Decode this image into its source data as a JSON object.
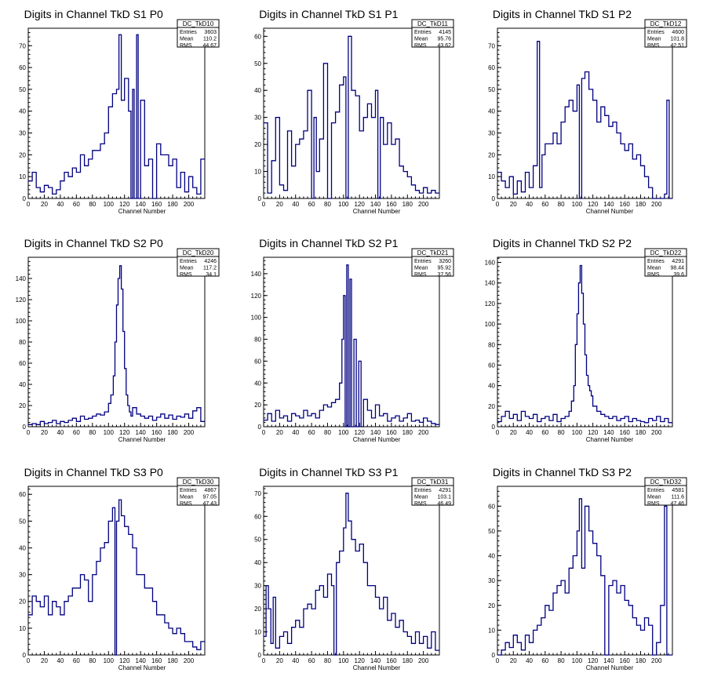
{
  "chart_data": [
    {
      "type": "histogram",
      "title": "Digits in Channel TkD S1 P0",
      "xlabel": "Channel Number",
      "ylabel": "",
      "xlim": [
        0,
        220
      ],
      "ylim": [
        0,
        78
      ],
      "x_ticks": [
        0,
        20,
        40,
        60,
        80,
        100,
        120,
        140,
        160,
        180,
        200
      ],
      "y_ticks": [
        0,
        10,
        20,
        30,
        40,
        50,
        60,
        70
      ],
      "stats": {
        "name": "DC_TkD10",
        "entries": "3603",
        "mean": "110.2",
        "rms": "44.67"
      },
      "x": [
        0,
        5,
        10,
        15,
        20,
        25,
        30,
        35,
        40,
        45,
        50,
        55,
        60,
        65,
        70,
        75,
        80,
        85,
        90,
        95,
        100,
        105,
        110,
        113,
        116,
        120,
        125,
        128,
        130,
        132,
        135,
        137,
        140,
        145,
        150,
        155,
        160,
        165,
        170,
        175,
        180,
        185,
        190,
        195,
        200,
        205,
        210,
        215
      ],
      "values": [
        8,
        12,
        5,
        3,
        6,
        5,
        2,
        4,
        8,
        12,
        10,
        14,
        12,
        20,
        15,
        18,
        22,
        22,
        25,
        30,
        42,
        48,
        50,
        75,
        45,
        55,
        40,
        0,
        50,
        0,
        75,
        0,
        45,
        15,
        18,
        0,
        25,
        20,
        20,
        15,
        18,
        5,
        12,
        3,
        10,
        5,
        2,
        18
      ],
      "color": "#000080"
    },
    {
      "type": "histogram",
      "title": "Digits in Channel TkD S1 P1",
      "xlabel": "Channel Number",
      "ylabel": "",
      "xlim": [
        0,
        220
      ],
      "ylim": [
        0,
        63
      ],
      "x_ticks": [
        0,
        20,
        40,
        60,
        80,
        100,
        120,
        140,
        160,
        180,
        200
      ],
      "y_ticks": [
        0,
        10,
        20,
        30,
        40,
        50,
        60
      ],
      "stats": {
        "name": "DC_TkD11",
        "entries": "4145",
        "mean": "95.76",
        "rms": "43.62"
      },
      "x": [
        0,
        5,
        10,
        15,
        20,
        25,
        30,
        35,
        40,
        45,
        50,
        55,
        60,
        63,
        66,
        70,
        75,
        80,
        85,
        90,
        95,
        100,
        103,
        106,
        110,
        115,
        120,
        125,
        130,
        135,
        140,
        143,
        146,
        150,
        155,
        160,
        165,
        170,
        175,
        180,
        185,
        190,
        195,
        200,
        205,
        210,
        215
      ],
      "values": [
        28,
        2,
        14,
        30,
        5,
        3,
        25,
        12,
        20,
        22,
        25,
        40,
        0,
        30,
        10,
        22,
        50,
        0,
        28,
        32,
        42,
        45,
        0,
        60,
        40,
        38,
        25,
        30,
        35,
        30,
        40,
        0,
        30,
        20,
        28,
        20,
        22,
        12,
        10,
        8,
        5,
        3,
        2,
        4,
        2,
        3,
        2
      ],
      "color": "#000080"
    },
    {
      "type": "histogram",
      "title": "Digits in Channel TkD S1 P2",
      "xlabel": "Channel Number",
      "ylabel": "",
      "xlim": [
        0,
        220
      ],
      "ylim": [
        0,
        78
      ],
      "x_ticks": [
        0,
        20,
        40,
        60,
        80,
        100,
        120,
        140,
        160,
        180,
        200
      ],
      "y_ticks": [
        0,
        10,
        20,
        30,
        40,
        50,
        60,
        70
      ],
      "stats": {
        "name": "DC_TkD12",
        "entries": "4600",
        "mean": "101.8",
        "rms": "42.51"
      },
      "x": [
        0,
        5,
        10,
        15,
        20,
        25,
        30,
        35,
        40,
        45,
        50,
        53,
        56,
        60,
        65,
        70,
        75,
        80,
        85,
        90,
        95,
        100,
        103,
        106,
        110,
        115,
        120,
        125,
        130,
        135,
        140,
        145,
        150,
        155,
        160,
        165,
        170,
        175,
        180,
        185,
        190,
        195,
        200,
        205,
        210,
        213,
        216
      ],
      "values": [
        12,
        8,
        5,
        10,
        2,
        8,
        3,
        12,
        5,
        15,
        72,
        5,
        20,
        25,
        25,
        30,
        25,
        35,
        42,
        45,
        40,
        52,
        0,
        55,
        58,
        50,
        45,
        35,
        42,
        38,
        33,
        35,
        30,
        25,
        22,
        25,
        18,
        20,
        15,
        10,
        5,
        0,
        0,
        0,
        2,
        45,
        0
      ],
      "color": "#000080"
    },
    {
      "type": "histogram",
      "title": "Digits in Channel TkD S2 P0",
      "xlabel": "Channel Number",
      "ylabel": "",
      "xlim": [
        0,
        220
      ],
      "ylim": [
        0,
        160
      ],
      "x_ticks": [
        0,
        20,
        40,
        60,
        80,
        100,
        120,
        140,
        160,
        180,
        200
      ],
      "y_ticks": [
        0,
        20,
        40,
        60,
        80,
        100,
        120,
        140
      ],
      "stats": {
        "name": "DC_TkD20",
        "entries": "4246",
        "mean": "117.2",
        "rms": "34.1"
      },
      "x": [
        0,
        5,
        10,
        15,
        20,
        25,
        30,
        35,
        40,
        45,
        50,
        55,
        60,
        65,
        70,
        75,
        80,
        85,
        90,
        95,
        100,
        103,
        106,
        108,
        110,
        112,
        114,
        116,
        118,
        120,
        122,
        124,
        126,
        128,
        130,
        135,
        140,
        145,
        150,
        155,
        160,
        165,
        170,
        175,
        180,
        185,
        190,
        195,
        200,
        205,
        210,
        215
      ],
      "values": [
        2,
        3,
        2,
        5,
        3,
        4,
        6,
        3,
        5,
        4,
        6,
        8,
        5,
        10,
        7,
        8,
        10,
        12,
        11,
        14,
        22,
        30,
        48,
        80,
        115,
        140,
        152,
        130,
        90,
        55,
        30,
        20,
        14,
        10,
        18,
        12,
        10,
        8,
        10,
        6,
        9,
        12,
        8,
        11,
        7,
        10,
        9,
        12,
        8,
        15,
        18,
        5
      ],
      "color": "#000080"
    },
    {
      "type": "histogram",
      "title": "Digits in Channel TkD S2 P1",
      "xlabel": "Channel Number",
      "ylabel": "",
      "xlim": [
        0,
        220
      ],
      "ylim": [
        0,
        155
      ],
      "x_ticks": [
        0,
        20,
        40,
        60,
        80,
        100,
        120,
        140,
        160,
        180,
        200
      ],
      "y_ticks": [
        0,
        20,
        40,
        60,
        80,
        100,
        120,
        140
      ],
      "stats": {
        "name": "DC_TkD21",
        "entries": "3260",
        "mean": "95.92",
        "rms": "37.56"
      },
      "x": [
        0,
        5,
        10,
        15,
        20,
        25,
        30,
        35,
        40,
        45,
        50,
        55,
        60,
        65,
        70,
        75,
        80,
        85,
        90,
        95,
        98,
        100,
        102,
        104,
        106,
        108,
        110,
        113,
        116,
        119,
        122,
        125,
        130,
        135,
        140,
        145,
        150,
        155,
        160,
        165,
        170,
        175,
        180,
        185,
        190,
        195,
        200,
        205,
        210,
        215
      ],
      "values": [
        6,
        12,
        5,
        15,
        8,
        10,
        5,
        12,
        10,
        8,
        15,
        10,
        12,
        8,
        15,
        20,
        18,
        22,
        25,
        40,
        80,
        120,
        0,
        148,
        0,
        135,
        0,
        80,
        0,
        60,
        0,
        25,
        15,
        8,
        20,
        10,
        12,
        5,
        8,
        10,
        5,
        8,
        12,
        5,
        6,
        4,
        8,
        5,
        3,
        2
      ],
      "color": "#000080"
    },
    {
      "type": "histogram",
      "title": "Digits in Channel TkD S2 P2",
      "xlabel": "Channel Number",
      "ylabel": "",
      "xlim": [
        0,
        220
      ],
      "ylim": [
        0,
        165
      ],
      "x_ticks": [
        0,
        20,
        40,
        60,
        80,
        100,
        120,
        140,
        160,
        180,
        200
      ],
      "y_ticks": [
        0,
        20,
        40,
        60,
        80,
        100,
        120,
        140,
        160
      ],
      "stats": {
        "name": "DC_TkD22",
        "entries": "4291",
        "mean": "98.44",
        "rms": "39.6"
      },
      "x": [
        0,
        5,
        10,
        15,
        20,
        25,
        30,
        35,
        40,
        45,
        50,
        55,
        60,
        65,
        70,
        75,
        80,
        85,
        90,
        93,
        96,
        98,
        100,
        102,
        104,
        106,
        108,
        110,
        112,
        114,
        116,
        118,
        120,
        125,
        130,
        135,
        140,
        145,
        150,
        155,
        160,
        165,
        170,
        175,
        180,
        185,
        190,
        195,
        200,
        205,
        210,
        215
      ],
      "values": [
        5,
        10,
        15,
        8,
        12,
        6,
        15,
        10,
        8,
        12,
        5,
        8,
        10,
        6,
        12,
        5,
        8,
        10,
        15,
        25,
        40,
        80,
        110,
        140,
        157,
        130,
        100,
        70,
        50,
        40,
        35,
        30,
        20,
        15,
        12,
        10,
        8,
        10,
        6,
        8,
        10,
        5,
        8,
        6,
        5,
        4,
        8,
        6,
        10,
        5,
        8,
        4
      ],
      "color": "#000080"
    },
    {
      "type": "histogram",
      "title": "Digits in Channel TkD S3 P0",
      "xlabel": "Channel Number",
      "ylabel": "",
      "xlim": [
        0,
        220
      ],
      "ylim": [
        0,
        63
      ],
      "x_ticks": [
        0,
        20,
        40,
        60,
        80,
        100,
        120,
        140,
        160,
        180,
        200
      ],
      "y_ticks": [
        0,
        10,
        20,
        30,
        40,
        50,
        60
      ],
      "stats": {
        "name": "DC_TkD30",
        "entries": "4867",
        "mean": "97.05",
        "rms": "47.43"
      },
      "x": [
        0,
        5,
        10,
        15,
        20,
        25,
        30,
        35,
        40,
        45,
        50,
        55,
        60,
        65,
        70,
        75,
        80,
        85,
        90,
        95,
        100,
        105,
        108,
        110,
        113,
        116,
        120,
        125,
        130,
        135,
        140,
        145,
        150,
        155,
        160,
        165,
        170,
        175,
        180,
        185,
        190,
        195,
        200,
        205,
        210,
        215
      ],
      "values": [
        15,
        22,
        20,
        18,
        22,
        15,
        20,
        18,
        15,
        20,
        22,
        25,
        25,
        30,
        28,
        20,
        30,
        35,
        40,
        42,
        50,
        55,
        0,
        50,
        58,
        52,
        48,
        45,
        40,
        30,
        30,
        25,
        25,
        20,
        15,
        15,
        12,
        10,
        8,
        10,
        8,
        5,
        5,
        3,
        2,
        5
      ],
      "color": "#000080"
    },
    {
      "type": "histogram",
      "title": "Digits in Channel TkD S3 P1",
      "xlabel": "Channel Number",
      "ylabel": "",
      "xlim": [
        0,
        220
      ],
      "ylim": [
        0,
        73
      ],
      "x_ticks": [
        0,
        20,
        40,
        60,
        80,
        100,
        120,
        140,
        160,
        180,
        200
      ],
      "y_ticks": [
        0,
        10,
        20,
        30,
        40,
        50,
        60,
        70
      ],
      "stats": {
        "name": "DC_TkD31",
        "entries": "4291",
        "mean": "103.1",
        "rms": "46.49"
      },
      "x": [
        0,
        3,
        6,
        9,
        12,
        15,
        20,
        25,
        30,
        35,
        40,
        45,
        50,
        55,
        60,
        65,
        70,
        75,
        80,
        85,
        88,
        91,
        95,
        100,
        103,
        106,
        110,
        115,
        120,
        125,
        130,
        135,
        140,
        145,
        150,
        155,
        160,
        165,
        170,
        175,
        180,
        185,
        190,
        195,
        200,
        205,
        210,
        215
      ],
      "values": [
        8,
        30,
        20,
        5,
        25,
        3,
        8,
        10,
        5,
        12,
        15,
        12,
        20,
        22,
        20,
        28,
        30,
        25,
        35,
        30,
        0,
        40,
        45,
        55,
        70,
        58,
        50,
        45,
        48,
        40,
        30,
        30,
        25,
        20,
        25,
        15,
        18,
        12,
        15,
        10,
        8,
        5,
        10,
        5,
        8,
        3,
        10,
        2
      ],
      "color": "#000080"
    },
    {
      "type": "histogram",
      "title": "Digits in Channel TkD S3 P2",
      "xlabel": "Channel Number",
      "ylabel": "",
      "xlim": [
        0,
        220
      ],
      "ylim": [
        0,
        68
      ],
      "x_ticks": [
        0,
        20,
        40,
        60,
        80,
        100,
        120,
        140,
        160,
        180,
        200
      ],
      "y_ticks": [
        0,
        10,
        20,
        30,
        40,
        50,
        60
      ],
      "stats": {
        "name": "DC_TkD32",
        "entries": "4581",
        "mean": "111.6",
        "rms": "47.46"
      },
      "x": [
        0,
        5,
        10,
        15,
        20,
        25,
        30,
        35,
        40,
        45,
        50,
        55,
        60,
        65,
        70,
        75,
        80,
        85,
        90,
        95,
        100,
        103,
        106,
        110,
        115,
        120,
        125,
        130,
        135,
        140,
        145,
        150,
        155,
        160,
        165,
        170,
        175,
        180,
        185,
        190,
        195,
        200,
        205,
        210,
        213,
        216
      ],
      "values": [
        0,
        2,
        5,
        3,
        8,
        5,
        2,
        8,
        5,
        10,
        12,
        15,
        20,
        18,
        25,
        28,
        30,
        25,
        35,
        40,
        50,
        63,
        35,
        60,
        50,
        45,
        40,
        32,
        0,
        28,
        30,
        25,
        28,
        22,
        20,
        15,
        12,
        10,
        15,
        12,
        0,
        5,
        20,
        60,
        0,
        0
      ],
      "color": "#000080"
    }
  ]
}
